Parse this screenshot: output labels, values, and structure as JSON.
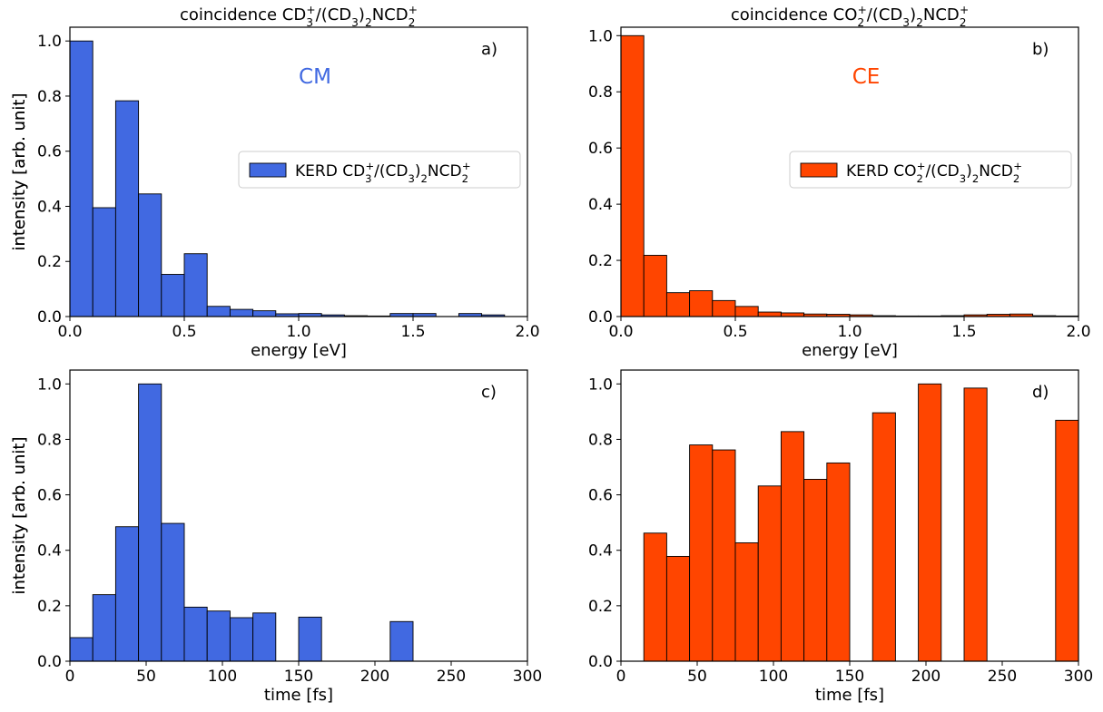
{
  "colors": {
    "cm": "#4169E1",
    "ce": "#FF4500",
    "edge": "#000000"
  },
  "chart_data": [
    {
      "id": "a",
      "type": "bar",
      "panel_label": "a)",
      "title": "coincidence CD3+/(CD3)2NCD2+",
      "annotation": "CM",
      "annotation_color": "#4169E1",
      "legend": "KERD CD3+/(CD3)2NCD2+",
      "legend_placement": "center-right",
      "xlabel": "energy [eV]",
      "ylabel": "intensity [arb. unit]",
      "xlim": [
        0,
        2.0
      ],
      "ylim": [
        0,
        1.05
      ],
      "xticks": [
        "0.0",
        "0.5",
        "1.0",
        "1.5",
        "2.0"
      ],
      "yticks": [
        "0.0",
        "0.2",
        "0.4",
        "0.6",
        "0.8",
        "1.0"
      ],
      "bin_width": 0.1,
      "bin_starts": [
        0.0,
        0.1,
        0.2,
        0.3,
        0.4,
        0.5,
        0.6,
        0.7,
        0.8,
        0.9,
        1.0,
        1.1,
        1.2,
        1.3,
        1.4,
        1.5,
        1.6,
        1.7,
        1.8,
        1.9
      ],
      "values": [
        1.0,
        0.395,
        0.783,
        0.445,
        0.153,
        0.228,
        0.037,
        0.026,
        0.021,
        0.01,
        0.011,
        0.006,
        0.003,
        0.002,
        0.011,
        0.011,
        0.0,
        0.011,
        0.006,
        0.0
      ]
    },
    {
      "id": "b",
      "type": "bar",
      "panel_label": "b)",
      "title": "coincidence CO2+/(CD3)2NCD2+",
      "annotation": "CE",
      "annotation_color": "#FF4500",
      "legend": "KERD CO2+/(CD3)2NCD2+",
      "legend_placement": "center-right",
      "xlabel": "energy [eV]",
      "ylabel": "intensity [arb. unit]",
      "xlim": [
        0,
        2.0
      ],
      "ylim": [
        0,
        1.03
      ],
      "xticks": [
        "0.0",
        "0.5",
        "1.0",
        "1.5",
        "2.0"
      ],
      "yticks": [
        "0.0",
        "0.2",
        "0.4",
        "0.6",
        "0.8",
        "1.0"
      ],
      "bin_width": 0.1,
      "bin_starts": [
        0.0,
        0.1,
        0.2,
        0.3,
        0.4,
        0.5,
        0.6,
        0.7,
        0.8,
        0.9,
        1.0,
        1.1,
        1.2,
        1.3,
        1.4,
        1.5,
        1.6,
        1.7,
        1.8,
        1.9
      ],
      "values": [
        1.0,
        0.218,
        0.085,
        0.092,
        0.057,
        0.036,
        0.016,
        0.013,
        0.009,
        0.008,
        0.006,
        0.003,
        0.002,
        0.002,
        0.003,
        0.006,
        0.008,
        0.009,
        0.003,
        0.002
      ]
    },
    {
      "id": "c",
      "type": "bar",
      "panel_label": "c)",
      "title": "",
      "xlabel": "time [fs]",
      "ylabel": "intensity [arb. unit]",
      "xlim": [
        0,
        300
      ],
      "ylim": [
        0,
        1.05
      ],
      "xticks": [
        "0",
        "50",
        "100",
        "150",
        "200",
        "250",
        "300"
      ],
      "yticks": [
        "0.0",
        "0.2",
        "0.4",
        "0.6",
        "0.8",
        "1.0"
      ],
      "bin_width": 15,
      "bin_starts": [
        0,
        15,
        30,
        45,
        60,
        75,
        90,
        105,
        120,
        150,
        210
      ],
      "values": [
        0.085,
        0.24,
        0.485,
        1.0,
        0.497,
        0.195,
        0.181,
        0.157,
        0.174,
        0.159,
        0.143
      ]
    },
    {
      "id": "d",
      "type": "bar",
      "panel_label": "d)",
      "title": "",
      "xlabel": "time [fs]",
      "ylabel": "intensity [arb. unit]",
      "xlim": [
        0,
        300
      ],
      "ylim": [
        0,
        1.05
      ],
      "xticks": [
        "0",
        "50",
        "100",
        "150",
        "200",
        "250",
        "300"
      ],
      "yticks": [
        "0.0",
        "0.2",
        "0.4",
        "0.6",
        "0.8",
        "1.0"
      ],
      "bin_width": 15,
      "bin_starts": [
        15,
        30,
        45,
        60,
        75,
        90,
        105,
        120,
        135,
        165,
        195,
        225,
        285
      ],
      "values": [
        0.462,
        0.378,
        0.78,
        0.762,
        0.427,
        0.632,
        0.828,
        0.656,
        0.715,
        0.896,
        1.0,
        0.985,
        0.869
      ]
    }
  ]
}
